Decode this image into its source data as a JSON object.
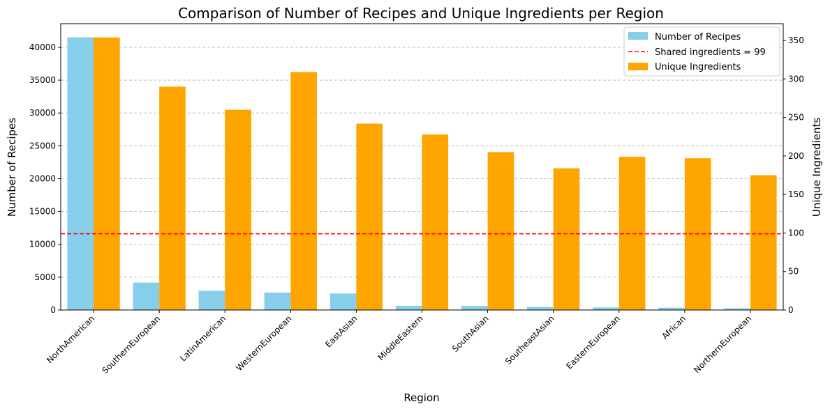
{
  "chart_data": {
    "type": "bar",
    "title": "Comparison of Number of Recipes and Unique Ingredients per Region",
    "xlabel": "Region",
    "ylabel_left": "Number of Recipes",
    "ylabel_right": "Unique Ingredients",
    "categories": [
      "NorthAmerican",
      "SouthernEuropean",
      "LatinAmerican",
      "WesternEuropean",
      "EastAsian",
      "MiddleEastern",
      "SouthAsian",
      "SoutheastAsian",
      "EasternEuropean",
      "African",
      "NorthernEuropean"
    ],
    "series": [
      {
        "name": "Number of Recipes",
        "axis": "left",
        "color": "#87ceeb",
        "values": [
          41524,
          4180,
          2917,
          2659,
          2512,
          645,
          621,
          457,
          381,
          352,
          250
        ]
      },
      {
        "name": "Unique Ingredients",
        "axis": "right",
        "color": "#ffa500",
        "values": [
          354,
          290,
          260,
          309,
          242,
          228,
          205,
          184,
          199,
          197,
          175
        ]
      }
    ],
    "reference_line": {
      "label": "Shared ingredients = 99",
      "value": 99,
      "axis": "right",
      "color": "#ff0000",
      "style": "dashed"
    },
    "ylim_left": [
      0,
      43600
    ],
    "ylim_right": [
      0,
      371.8
    ],
    "yticks_left": [
      0,
      5000,
      10000,
      15000,
      20000,
      25000,
      30000,
      35000,
      40000
    ],
    "yticks_right": [
      0,
      50,
      100,
      150,
      200,
      250,
      300,
      350
    ],
    "grid": "y-dashed",
    "legend": "top-right"
  }
}
